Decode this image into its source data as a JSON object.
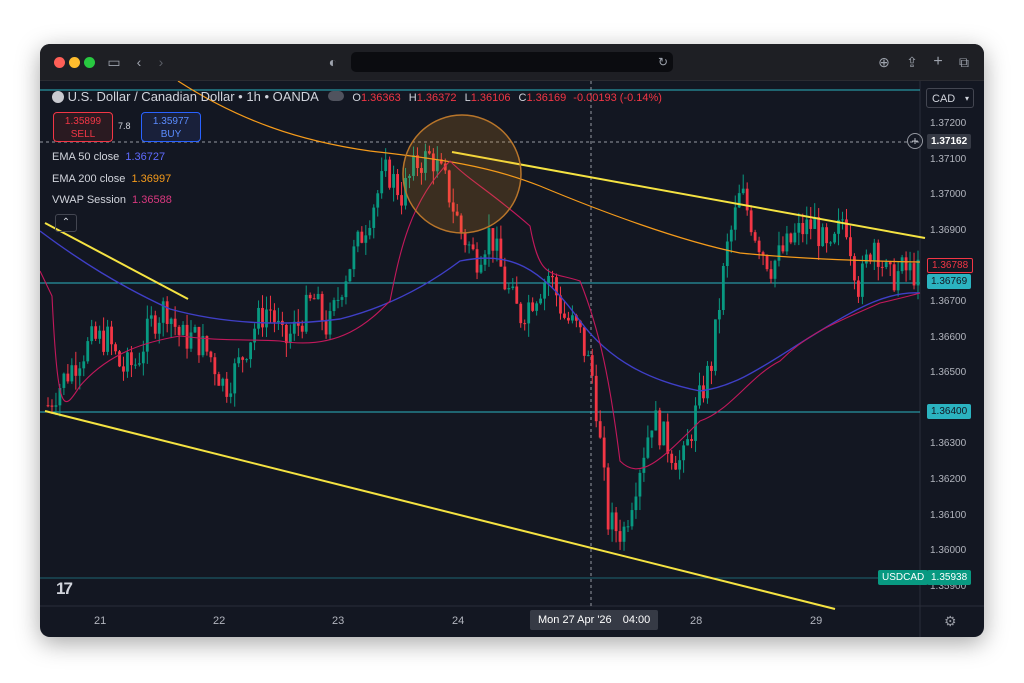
{
  "titlebar": {
    "url": ""
  },
  "symbol": {
    "name": "U.S. Dollar / Canadian Dollar",
    "interval": "1h",
    "source": "OANDA"
  },
  "ohlc": {
    "o_label": "O",
    "o": "1.36363",
    "h_label": "H",
    "h": "1.36372",
    "l_label": "L",
    "l": "1.36106",
    "c_label": "C",
    "c": "1.36169",
    "change": "-0.00193 (-0.14%)"
  },
  "trade": {
    "sell_price": "1.35899",
    "sell_label": "SELL",
    "spread": "7.8",
    "buy_price": "1.35977",
    "buy_label": "BUY"
  },
  "indicators": [
    {
      "label": "EMA 50 close",
      "value": "1.36727",
      "color": "#3f3fc7"
    },
    {
      "label": "EMA 200 close",
      "value": "1.36997",
      "color": "#f59b1b"
    },
    {
      "label": "VWAP Session",
      "value": "1.36588",
      "color": "#d9387f"
    }
  ],
  "currency": "CAD",
  "price_axis": {
    "ticks": [
      "1.37200",
      "1.37100",
      "1.37000",
      "1.36900",
      "1.36800",
      "1.36700",
      "1.36600",
      "1.36500",
      "1.36400",
      "1.36300",
      "1.36200",
      "1.36100",
      "1.36000",
      "1.35900"
    ]
  },
  "price_labels": {
    "crosshair": "1.37162",
    "ema200": "1.36788",
    "ema50": "1.36769",
    "hline": "1.36400",
    "symbol": "USDCAD",
    "last": "1.35938"
  },
  "time_axis": {
    "labels": [
      "21",
      "22",
      "23",
      "24",
      "28",
      "29"
    ],
    "crosshair": "Mon 27 Apr '26",
    "crosshair_time": "04:00"
  },
  "colors": {
    "up": "#089981",
    "down": "#f23645",
    "trend": "#f5e342",
    "hline": "#2bb3c0",
    "background": "#131722"
  },
  "chart_data": {
    "type": "candlestick",
    "symbol": "USDCAD",
    "interval": "1h",
    "x_labels": [
      "21",
      "22",
      "23",
      "24",
      "Mon 27 Apr '26",
      "28",
      "29"
    ],
    "ylim": [
      1.3585,
      1.3725
    ],
    "series": [
      {
        "name": "EMA 50 close",
        "last": 1.36727
      },
      {
        "name": "EMA 200 close",
        "last": 1.36997
      },
      {
        "name": "VWAP Session",
        "last": 1.36588
      }
    ],
    "horizontal_levels": [
      1.36769,
      1.364,
      1.35938
    ],
    "trendlines": [
      {
        "from": [
          "20 Apr",
          "1.3690"
        ],
        "to": [
          "21 Apr",
          "1.3672"
        ]
      },
      {
        "from": [
          "24 Apr",
          "1.3712"
        ],
        "to": [
          "29 Apr",
          "1.3688"
        ]
      },
      {
        "from": [
          "20 Apr",
          "1.3640"
        ],
        "to": [
          "29 Apr",
          "1.3593"
        ]
      }
    ],
    "path": [
      1.3641,
      1.3648,
      1.3654,
      1.3659,
      1.366,
      1.3651,
      1.3653,
      1.3664,
      1.3669,
      1.366,
      1.366,
      1.3655,
      1.3646,
      1.3653,
      1.3663,
      1.3669,
      1.3658,
      1.3664,
      1.3671,
      1.3662,
      1.3676,
      1.3686,
      1.3697,
      1.3707,
      1.37,
      1.3709,
      1.3711,
      1.3703,
      1.369,
      1.3682,
      1.369,
      1.3675,
      1.3666,
      1.3672,
      1.3678,
      1.3666,
      1.3662,
      1.3648,
      1.3608,
      1.3605,
      1.3622,
      1.3638,
      1.363,
      1.3624,
      1.364,
      1.3653,
      1.3684,
      1.3701,
      1.3689,
      1.368,
      1.3685,
      1.369,
      1.3692,
      1.3682,
      1.3695,
      1.3674,
      1.3688,
      1.3676,
      1.3679,
      1.3678
    ]
  }
}
